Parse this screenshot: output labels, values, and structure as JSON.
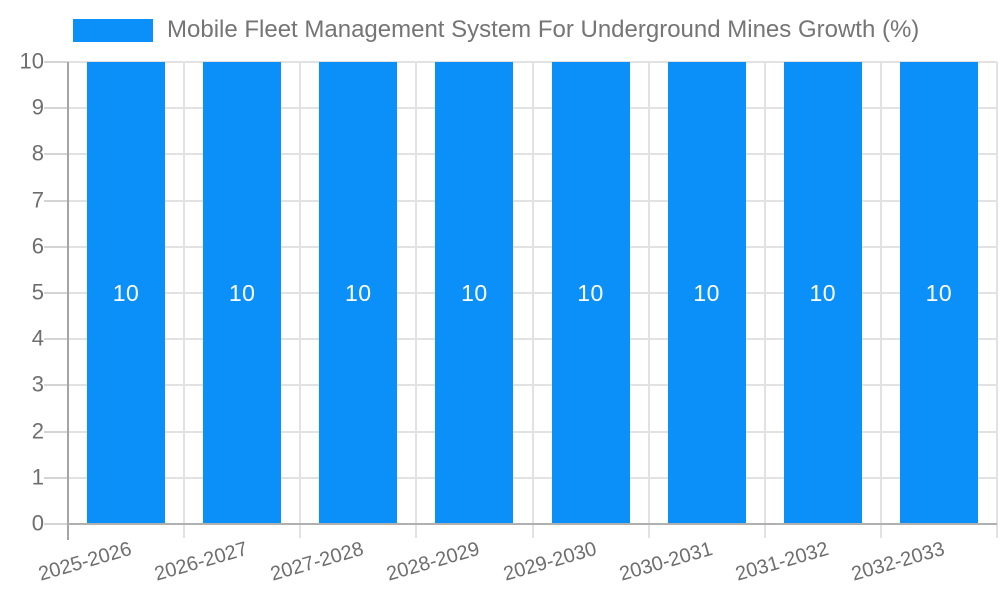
{
  "chart_data": {
    "type": "bar",
    "title": "Mobile Fleet Management System For Underground Mines Growth (%)",
    "legend_position": "top",
    "categories": [
      "2025-2026",
      "2026-2027",
      "2027-2028",
      "2028-2029",
      "2029-2030",
      "2030-2031",
      "2031-2032",
      "2032-2033"
    ],
    "series": [
      {
        "name": "Mobile Fleet Management System For Underground Mines Growth (%)",
        "values": [
          10,
          10,
          10,
          10,
          10,
          10,
          10,
          10
        ]
      }
    ],
    "bar_labels": [
      "10",
      "10",
      "10",
      "10",
      "10",
      "10",
      "10",
      "10"
    ],
    "xlabel": "",
    "ylabel": "",
    "ylim": [
      0,
      10
    ],
    "yticks": [
      0,
      1,
      2,
      3,
      4,
      5,
      6,
      7,
      8,
      9,
      10
    ],
    "grid": true
  },
  "colors": {
    "bar": "#0b90f9",
    "legend_text": "#757575",
    "axis_text": "#6e6e6e",
    "gridline": "#e2e2e2",
    "tick": "#d4d4d4",
    "y_axis_line": "#a5a5a5",
    "baseline": "#b0b0b0",
    "bar_label": "#ffffff",
    "background": "#ffffff"
  }
}
